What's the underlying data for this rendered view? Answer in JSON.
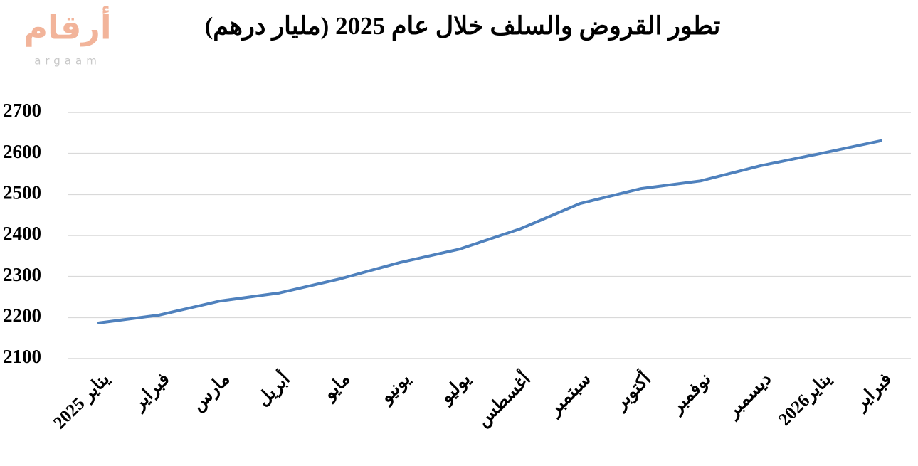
{
  "logo": {
    "arabic": "أرقام",
    "latin": "argaam"
  },
  "chart_data": {
    "type": "line",
    "title": "تطور القروض والسلف  خلال عام 2025 (مليار درهم)",
    "categories": [
      "يناير 2025",
      "فبراير",
      "مارس",
      "أبريل",
      "مايو",
      "يونيو",
      "يوليو",
      "أغسطس",
      "سبتمبر",
      "أكتوبر",
      "نوفمبر",
      "ديسمبر",
      "يناير2026",
      "فبراير"
    ],
    "values": [
      2187,
      2206,
      2240,
      2260,
      2294,
      2334,
      2367,
      2416,
      2478,
      2514,
      2533,
      2570,
      2600,
      2631
    ],
    "color": "#4f81bd",
    "ylim": [
      2100,
      2700
    ],
    "yticks": [
      2100,
      2200,
      2300,
      2400,
      2500,
      2600,
      2700
    ],
    "grid": true
  }
}
